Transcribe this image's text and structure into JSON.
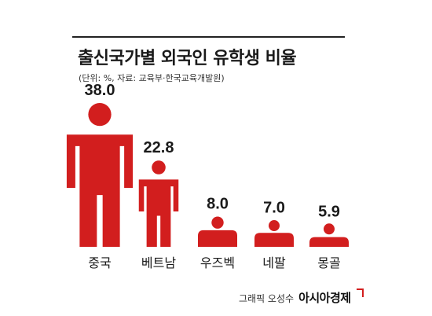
{
  "title": "출신국가별 외국인 유학생 비율",
  "subtitle": "(단위: %, 자료: 교육부·한국교육개발원)",
  "credit": {
    "by": "그래픽 오성수",
    "brand": "아시아경제"
  },
  "colors": {
    "figure": "#d21e1e",
    "text": "#1a1a1a",
    "rule": "#222222"
  },
  "chart_data": {
    "type": "bar",
    "mark": "person-pictogram",
    "categories": [
      "중국",
      "베트남",
      "우즈벡",
      "네팔",
      "몽골"
    ],
    "values": [
      38.0,
      22.8,
      8.0,
      7.0,
      5.9
    ],
    "value_labels": [
      "38.0",
      "22.8",
      "8.0",
      "7.0",
      "5.9"
    ],
    "title": "출신국가별 외국인 유학생 비율",
    "unit": "%"
  }
}
